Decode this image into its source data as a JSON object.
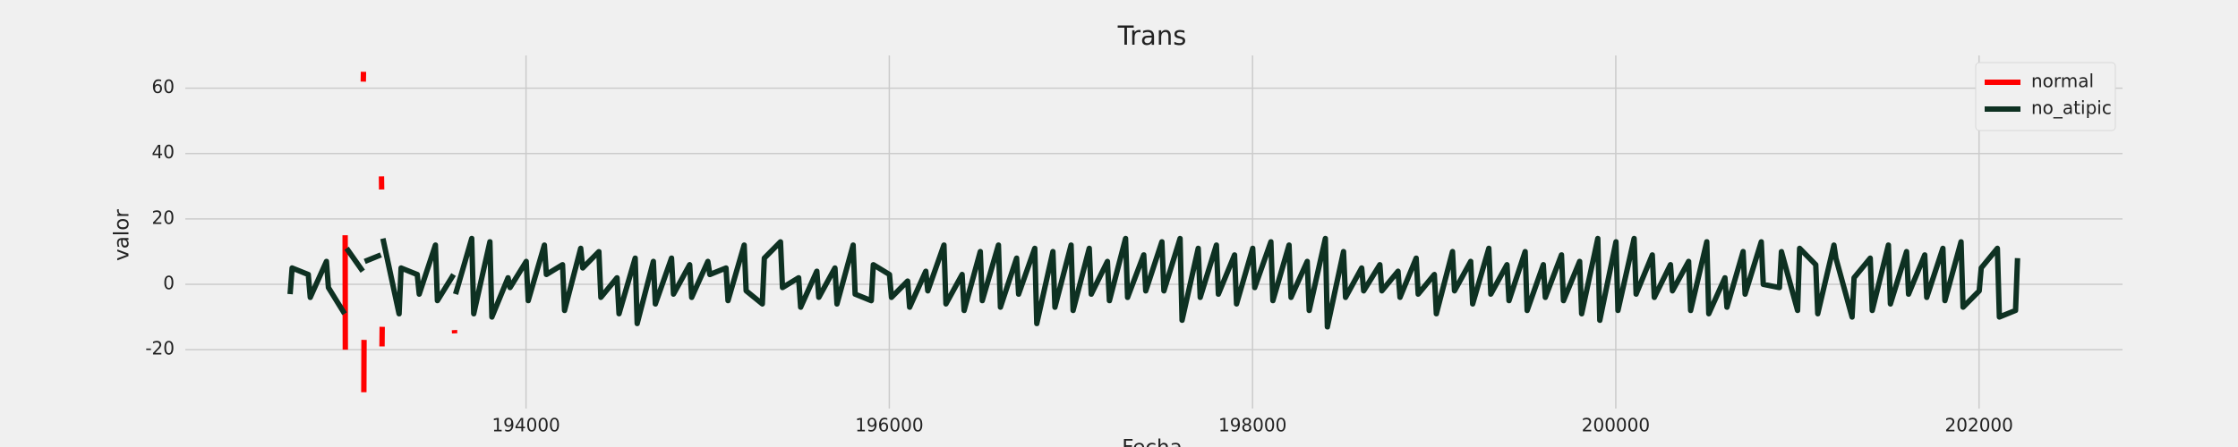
{
  "chart_data": {
    "type": "line",
    "title": "Trans",
    "xlabel": "Fecha",
    "ylabel": "valor",
    "grid": true,
    "legend": "upper right",
    "xlim": [
      192124,
      202790
    ],
    "xticks": [
      194000,
      196000,
      198000,
      200000,
      202000
    ],
    "ylim": [
      -38,
      70
    ],
    "yticks": [
      -20,
      0,
      20,
      40,
      60
    ],
    "x": [
      192701,
      192712,
      192801,
      192812,
      192901,
      192912,
      193001,
      193004,
      193005,
      193012,
      193101,
      193104,
      193105,
      193106,
      193107,
      193108,
      193112,
      193201,
      193204,
      193205,
      193206,
      193207,
      193208,
      193212,
      193301,
      193312,
      193401,
      193412,
      193501,
      193512,
      193601,
      193606,
      193607,
      193612,
      193701,
      193712,
      193801,
      193812,
      193901,
      193912,
      194001,
      194012,
      194101,
      194112,
      194201,
      194212,
      194301,
      194312,
      194401,
      194412,
      194501,
      194512,
      194601,
      194612,
      194701,
      194712,
      194801,
      194812,
      194901,
      194912,
      195001,
      195012,
      195101,
      195112,
      195201,
      195212,
      195301,
      195312,
      195401,
      195412,
      195501,
      195512,
      195601,
      195612,
      195701,
      195712,
      195801,
      195812,
      195901,
      195912,
      196001,
      196012,
      196101,
      196112,
      196201,
      196212,
      196301,
      196312,
      196401,
      196412,
      196501,
      196512,
      196601,
      196612,
      196701,
      196712,
      196801,
      196812,
      196901,
      196912,
      197001,
      197012,
      197101,
      197112,
      197201,
      197212,
      197301,
      197312,
      197401,
      197412,
      197501,
      197512,
      197601,
      197612,
      197701,
      197712,
      197801,
      197812,
      197901,
      197912,
      198001,
      198012,
      198101,
      198112,
      198201,
      198212,
      198301,
      198312,
      198401,
      198412,
      198501,
      198512,
      198601,
      198612,
      198701,
      198712,
      198801,
      198812,
      198901,
      198912,
      199001,
      199012,
      199101,
      199112,
      199201,
      199212,
      199301,
      199312,
      199401,
      199412,
      199501,
      199512,
      199601,
      199612,
      199701,
      199712,
      199801,
      199812,
      199901,
      199912,
      200001,
      200012,
      200101,
      200112,
      200201,
      200212,
      200301,
      200312,
      200401,
      200412,
      200501,
      200512,
      200601,
      200612,
      200701,
      200712,
      200801,
      200812,
      200901,
      200912,
      201001,
      201012,
      201101,
      201112,
      201201,
      201212,
      201301,
      201312,
      201401,
      201412,
      201501,
      201512,
      201601,
      201612,
      201701,
      201712,
      201801,
      201812,
      201901,
      201912,
      202001,
      202012,
      202101,
      202112,
      202201,
      202212
    ],
    "series": [
      {
        "name": "normal",
        "color": "#ff0000",
        "values": [
          null,
          null,
          null,
          null,
          null,
          null,
          null,
          15,
          -20,
          null,
          null,
          62,
          65,
          null,
          -33,
          -17,
          null,
          null,
          33,
          29,
          null,
          -19,
          -13,
          null,
          null,
          null,
          null,
          null,
          null,
          null,
          null,
          -14,
          -15,
          null,
          null,
          null,
          null,
          null,
          null,
          null,
          null,
          null,
          null,
          null,
          null,
          null,
          null,
          null,
          null,
          null,
          null,
          null,
          null,
          null,
          null,
          null,
          null,
          null,
          null,
          null,
          null,
          null,
          null,
          null,
          null,
          null,
          null,
          null,
          null,
          null,
          null,
          null,
          null,
          null,
          null,
          null,
          null,
          null,
          null,
          null,
          null,
          null,
          null,
          null,
          null,
          null,
          null,
          null,
          null,
          null,
          null,
          null,
          null,
          null,
          null,
          null,
          null,
          null,
          null,
          null,
          null,
          null,
          null,
          null,
          null,
          null,
          null,
          null,
          null,
          null,
          null,
          null,
          null,
          null,
          null,
          null,
          null,
          null,
          null,
          null,
          null,
          null,
          null,
          null,
          null,
          null,
          null,
          null,
          null,
          null,
          null,
          null,
          null,
          null,
          null,
          null,
          null,
          null,
          null,
          null,
          null,
          null,
          null,
          null,
          null,
          null,
          null,
          null,
          null,
          null,
          null,
          null,
          null,
          null,
          null,
          null,
          null,
          null,
          null,
          null,
          null,
          null,
          null,
          null,
          null,
          null,
          null,
          null,
          null,
          null,
          null,
          null,
          null,
          null,
          null,
          null,
          null,
          null,
          null,
          null,
          null,
          null,
          null,
          null,
          null,
          null,
          null,
          null,
          null,
          null,
          null,
          null,
          null,
          null,
          null,
          null,
          null,
          null,
          null,
          null,
          null,
          null,
          null,
          null,
          null,
          null
        ]
      },
      {
        "name": "no_atipic",
        "color": "#0e3122",
        "values": [
          -3,
          5,
          3,
          -4,
          7,
          -1,
          -9,
          null,
          null,
          11,
          4,
          null,
          null,
          null,
          null,
          null,
          7,
          9,
          null,
          null,
          null,
          null,
          null,
          14,
          -9,
          5,
          3,
          -3,
          12,
          -5,
          3,
          null,
          null,
          -3,
          14,
          -9,
          13,
          -10,
          2,
          -1,
          7,
          -5,
          12,
          3,
          6,
          -8,
          11,
          5,
          10,
          -4,
          2,
          -9,
          8,
          -12,
          7,
          -6,
          8,
          -3,
          6,
          -4,
          7,
          3,
          5,
          -5,
          12,
          -2,
          -6,
          8,
          13,
          -1,
          2,
          -7,
          4,
          -4,
          5,
          -6,
          12,
          -3,
          -5,
          6,
          3,
          -4,
          1,
          -7,
          4,
          -2,
          12,
          -6,
          3,
          -8,
          10,
          -5,
          12,
          -7,
          8,
          -3,
          11,
          -12,
          10,
          -7,
          12,
          -8,
          11,
          -3,
          7,
          -5,
          14,
          -4,
          9,
          -2,
          13,
          -2,
          14,
          -11,
          11,
          -4,
          12,
          -3,
          9,
          -6,
          11,
          -1,
          13,
          -5,
          12,
          -4,
          7,
          -8,
          14,
          -13,
          10,
          -4,
          5,
          -2,
          6,
          -2,
          4,
          -4,
          8,
          -3,
          3,
          -9,
          10,
          -2,
          7,
          -6,
          11,
          -3,
          6,
          -5,
          10,
          -8,
          6,
          -4,
          9,
          -5,
          7,
          -9,
          14,
          -11,
          13,
          -8,
          14,
          -3,
          9,
          -4,
          6,
          -2,
          7,
          -8,
          13,
          -9,
          2,
          -7,
          10,
          -3,
          13,
          0,
          -1,
          10,
          -8,
          11,
          6,
          -9,
          12,
          8,
          -10,
          2,
          8,
          -8,
          12,
          -6,
          10,
          -3,
          9,
          -4,
          11,
          -5,
          13,
          -7,
          -2,
          5,
          11,
          -10,
          -8,
          8
        ]
      }
    ]
  }
}
